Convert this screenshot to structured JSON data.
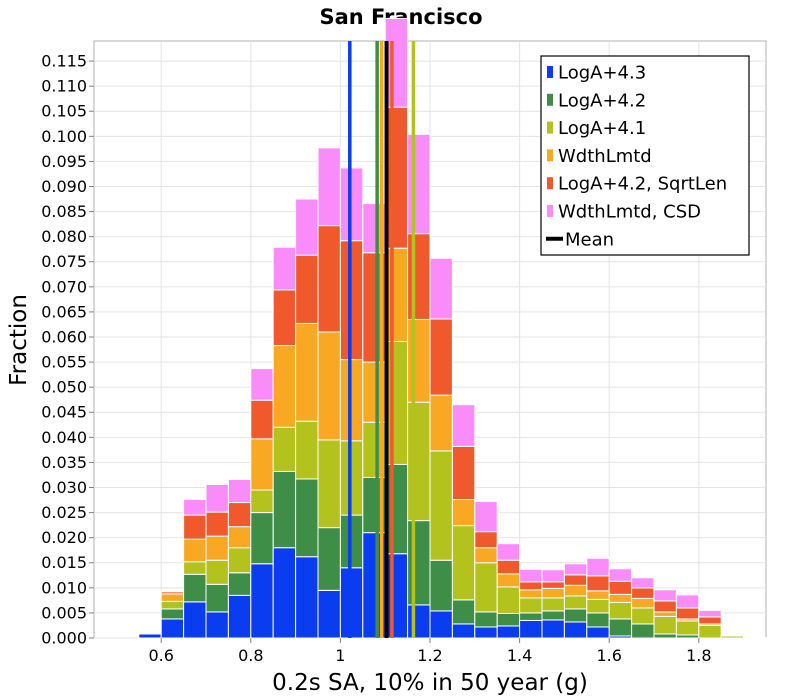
{
  "chart_data": {
    "type": "bar",
    "stacked": true,
    "title": "San Francisco",
    "xlabel": "0.2s SA, 10% in 50 year (g)",
    "ylabel": "Fraction",
    "xlim": [
      0.45,
      1.95
    ],
    "ylim": [
      0.0,
      0.119
    ],
    "xticks": [
      "0.6",
      "0.8",
      "1",
      "1.2",
      "1.4",
      "1.6",
      "1.8"
    ],
    "xtick_values": [
      0.6,
      0.8,
      1.0,
      1.2,
      1.4,
      1.6,
      1.8
    ],
    "yticks": [
      "0.000",
      "0.005",
      "0.010",
      "0.015",
      "0.020",
      "0.025",
      "0.030",
      "0.035",
      "0.040",
      "0.045",
      "0.050",
      "0.055",
      "0.060",
      "0.065",
      "0.070",
      "0.075",
      "0.080",
      "0.085",
      "0.090",
      "0.095",
      "0.100",
      "0.105",
      "0.110",
      "0.115"
    ],
    "ytick_values": [
      0,
      0.005,
      0.01,
      0.015,
      0.02,
      0.025,
      0.03,
      0.035,
      0.04,
      0.045,
      0.05,
      0.055,
      0.06,
      0.065,
      0.07,
      0.075,
      0.08,
      0.085,
      0.09,
      0.095,
      0.1,
      0.105,
      0.11,
      0.115
    ],
    "grid": true,
    "legend_position": "top-right",
    "bin_width": 0.05,
    "bin_centers": [
      0.525,
      0.575,
      0.625,
      0.675,
      0.725,
      0.775,
      0.825,
      0.875,
      0.925,
      0.975,
      1.025,
      1.075,
      1.125,
      1.175,
      1.225,
      1.275,
      1.325,
      1.375,
      1.425,
      1.475,
      1.525,
      1.575,
      1.625,
      1.675,
      1.725,
      1.775,
      1.825,
      1.875,
      1.925
    ],
    "series": [
      {
        "name": "LogA+4.3",
        "color": "#0a3cf0",
        "values": [
          0,
          0.0008,
          0.0038,
          0.0072,
          0.0052,
          0.0085,
          0.0148,
          0.018,
          0.0162,
          0.0095,
          0.014,
          0.021,
          0.0168,
          0.0066,
          0.0054,
          0.0028,
          0.0022,
          0.0024,
          0.0035,
          0.0036,
          0.0032,
          0.0022,
          0.0004,
          0,
          0,
          0,
          0,
          0,
          0
        ]
      },
      {
        "name": "LogA+4.2",
        "color": "#3e8e48",
        "values": [
          0,
          0,
          0.002,
          0.0055,
          0.0055,
          0.0045,
          0.0102,
          0.0152,
          0.0155,
          0.0125,
          0.0105,
          0.011,
          0.0178,
          0.0168,
          0.0101,
          0.0048,
          0.003,
          0.0025,
          0.0015,
          0.0018,
          0.0026,
          0.0028,
          0.0034,
          0.0028,
          0.0008,
          0.0006,
          0,
          0,
          0
        ]
      },
      {
        "name": "LogA+4.1",
        "color": "#b4c21e",
        "values": [
          0,
          0,
          0.0015,
          0.0025,
          0.0048,
          0.005,
          0.0045,
          0.0088,
          0.0115,
          0.0175,
          0.0148,
          0.011,
          0.0245,
          0.0236,
          0.0218,
          0.0148,
          0.0098,
          0.0053,
          0.003,
          0.0026,
          0.0026,
          0.0027,
          0.0033,
          0.0032,
          0.0035,
          0.0028,
          0.0025,
          0.0004,
          0
        ]
      },
      {
        "name": "WdthLmtd",
        "color": "#f9a823",
        "values": [
          0,
          0,
          0.0015,
          0.0045,
          0.0048,
          0.0042,
          0.0102,
          0.0163,
          0.0195,
          0.0215,
          0.0162,
          0.012,
          0.0186,
          0.0165,
          0.0111,
          0.0052,
          0.003,
          0.0026,
          0.0016,
          0.0019,
          0.0021,
          0.0017,
          0.0016,
          0.0019,
          0.0009,
          0.0004,
          0.0003,
          0.0002,
          0.0001
        ]
      },
      {
        "name": "LogA+4.2, SqrtLen",
        "color": "#f0592b",
        "values": [
          0,
          0,
          0.0004,
          0.0048,
          0.0048,
          0.0048,
          0.0077,
          0.0111,
          0.0136,
          0.0212,
          0.0237,
          0.0218,
          0.0281,
          0.0171,
          0.0152,
          0.0106,
          0.0032,
          0.0027,
          0.0016,
          0.0013,
          0.0021,
          0.003,
          0.0026,
          0.0021,
          0.0022,
          0.0022,
          0.0014,
          0,
          0
        ]
      },
      {
        "name": "WdthLmtd, CSD",
        "color": "#fa8cfa",
        "values": [
          0,
          0,
          0,
          0.0031,
          0.0055,
          0.0046,
          0.0063,
          0.0085,
          0.0112,
          0.0155,
          0.0145,
          0.0098,
          0.0177,
          0.0198,
          0.0121,
          0.0083,
          0.006,
          0.0033,
          0.0025,
          0.0024,
          0.0022,
          0.0035,
          0.0025,
          0.002,
          0.0022,
          0.0026,
          0.0013,
          0.0002,
          0
        ]
      }
    ],
    "mean_lines": [
      {
        "series": "LogA+4.3",
        "color": "#0a3cf0",
        "x": 1.021
      },
      {
        "series": "LogA+4.2",
        "color": "#3e8e48",
        "x": 1.082
      },
      {
        "series": "LogA+4.1",
        "color": "#b4c21e",
        "x": 1.163
      },
      {
        "series": "WdthLmtd",
        "color": "#f9a823",
        "x": 1.092
      },
      {
        "series": "LogA+4.2, SqrtLen",
        "color": "#f0592b",
        "x": 1.115
      },
      {
        "series": "Overall",
        "color": "#000000",
        "x": 1.103
      }
    ],
    "legend": [
      {
        "label": "LogA+4.3",
        "color": "#0a3cf0",
        "kind": "box"
      },
      {
        "label": "LogA+4.2",
        "color": "#3e8e48",
        "kind": "box"
      },
      {
        "label": "LogA+4.1",
        "color": "#b4c21e",
        "kind": "box"
      },
      {
        "label": "WdthLmtd",
        "color": "#f9a823",
        "kind": "box"
      },
      {
        "label": "LogA+4.2, SqrtLen",
        "color": "#f0592b",
        "kind": "box"
      },
      {
        "label": "WdthLmtd, CSD",
        "color": "#fa8cfa",
        "kind": "box"
      },
      {
        "label": "Mean",
        "color": "#000000",
        "kind": "line"
      }
    ]
  }
}
